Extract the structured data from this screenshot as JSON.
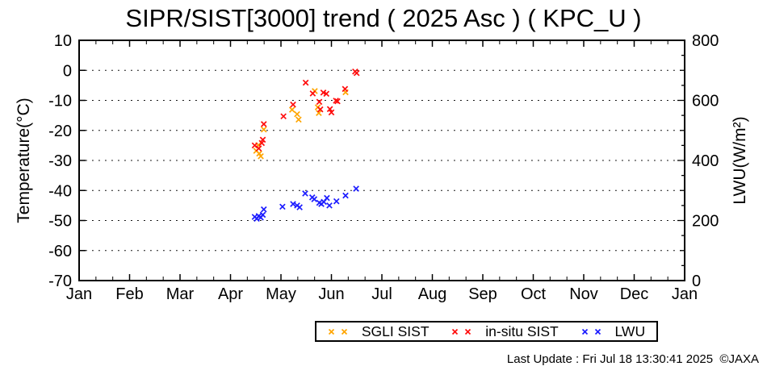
{
  "title": "SIPR/SIST[3000] trend ( 2025 Asc ) ( KPC_U )",
  "footer": "Last Update : Fri Jul 18 13:30:41 2025  ©JAXA",
  "legend": {
    "items": [
      {
        "label": "SGLI SIST",
        "color": "#ffa500"
      },
      {
        "label": "in-situ SIST",
        "color": "#ff0d0d"
      },
      {
        "label": "LWU",
        "color": "#1c1cff"
      }
    ]
  },
  "chart_data": {
    "type": "scatter",
    "title": "SIPR/SIST[3000] trend ( 2025 Asc ) ( KPC_U )",
    "x_axis": {
      "unit": "month",
      "tick_labels": [
        "Jan",
        "Feb",
        "Mar",
        "Apr",
        "May",
        "Jun",
        "Jul",
        "Aug",
        "Sep",
        "Oct",
        "Nov",
        "Dec",
        "Jan"
      ],
      "range": [
        0,
        12
      ],
      "minor_divisions_per_month": 3
    },
    "y_left": {
      "label": "Temperature(°C)",
      "range": [
        -70,
        10
      ],
      "ticks": [
        10,
        0,
        -10,
        -20,
        -30,
        -40,
        -50,
        -60,
        -70
      ],
      "gridlines": [
        0,
        -10,
        -20,
        -30,
        -40,
        -50,
        -60
      ]
    },
    "y_right": {
      "label": "LWU(W/m²)",
      "range": [
        0,
        800
      ],
      "ticks": [
        800,
        600,
        400,
        200,
        0
      ],
      "minor_step": 50
    },
    "grid": "dotted-horizontal",
    "legend_position": "below",
    "series": [
      {
        "name": "SGLI SIST",
        "id": "sgli-sist",
        "axis": "left",
        "marker": "x",
        "color": "#ffa500",
        "points": [
          [
            3.51,
            -26.8
          ],
          [
            3.55,
            -24.9
          ],
          [
            3.57,
            -27.7
          ],
          [
            3.6,
            -28.6
          ],
          [
            3.66,
            -19.7
          ],
          [
            4.22,
            -13.1
          ],
          [
            4.32,
            -14.6
          ],
          [
            4.35,
            -16.4
          ],
          [
            4.67,
            -6.9
          ],
          [
            4.73,
            -12.3
          ],
          [
            4.75,
            -14.2
          ],
          [
            5.28,
            -7.3
          ]
        ]
      },
      {
        "name": "in-situ SIST",
        "id": "insitu-sist",
        "axis": "left",
        "marker": "x",
        "color": "#ff0d0d",
        "points": [
          [
            3.48,
            -25.0
          ],
          [
            3.56,
            -26.0
          ],
          [
            3.62,
            -24.2
          ],
          [
            3.64,
            -23.1
          ],
          [
            3.66,
            -17.9
          ],
          [
            4.05,
            -15.3
          ],
          [
            4.24,
            -11.4
          ],
          [
            4.49,
            -4.1
          ],
          [
            4.63,
            -7.7
          ],
          [
            4.76,
            -10.5
          ],
          [
            4.78,
            -13.0
          ],
          [
            4.84,
            -7.4
          ],
          [
            4.9,
            -7.8
          ],
          [
            4.97,
            -12.9
          ],
          [
            5.0,
            -14.0
          ],
          [
            5.09,
            -10.1
          ],
          [
            5.12,
            -10.3
          ],
          [
            5.27,
            -6.2
          ],
          [
            5.47,
            -0.4
          ],
          [
            5.5,
            -0.9
          ]
        ]
      },
      {
        "name": "LWU",
        "id": "lwu",
        "axis": "right",
        "marker": "x",
        "color": "#1c1cff",
        "points": [
          [
            3.48,
            212
          ],
          [
            3.52,
            206
          ],
          [
            3.56,
            215
          ],
          [
            3.6,
            210
          ],
          [
            3.64,
            219
          ],
          [
            3.66,
            237
          ],
          [
            4.03,
            246
          ],
          [
            4.24,
            255
          ],
          [
            4.32,
            250
          ],
          [
            4.37,
            244
          ],
          [
            4.48,
            290
          ],
          [
            4.62,
            277
          ],
          [
            4.66,
            271
          ],
          [
            4.76,
            259
          ],
          [
            4.8,
            255
          ],
          [
            4.85,
            262
          ],
          [
            4.91,
            275
          ],
          [
            4.96,
            250
          ],
          [
            5.1,
            264
          ],
          [
            5.28,
            283
          ],
          [
            5.49,
            306
          ]
        ]
      }
    ]
  }
}
